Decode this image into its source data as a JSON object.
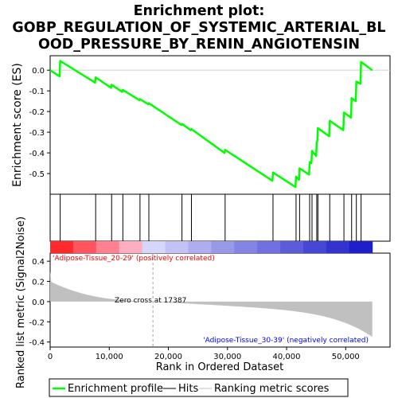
{
  "chart_data": {
    "type": "line",
    "title_lines": [
      "Enrichment plot:",
      "GOBP_REGULATION_OF_SYSTEMIC_ARTERIAL_BL",
      "OOD_PRESSURE_BY_RENIN_ANGIOTENSIN"
    ],
    "es_panel": {
      "ylabel": "Enrichment score (ES)",
      "ylim": [
        -0.6,
        0.07
      ],
      "yticks": [
        0.0,
        -0.1,
        -0.2,
        -0.3,
        -0.4,
        -0.5
      ],
      "ytick_labels": [
        "0.0",
        "-0.1",
        "-0.2",
        "-0.3",
        "-0.4",
        "-0.5"
      ],
      "color": "#00ff00"
    },
    "hits": [
      1700,
      7700,
      10400,
      12300,
      15200,
      16700,
      22300,
      23900,
      29600,
      37700,
      41600,
      42200,
      43900,
      44300,
      45100,
      45300,
      47300,
      49700,
      51000,
      51800,
      52600
    ],
    "es_curve": {
      "x": [
        0,
        1600,
        1700,
        7600,
        7700,
        10300,
        10400,
        12200,
        12300,
        15100,
        15200,
        16600,
        16700,
        22200,
        22300,
        23800,
        23900,
        29500,
        29600,
        37600,
        37700,
        41500,
        41600,
        42100,
        42200,
        43800,
        43900,
        44200,
        44300,
        45000,
        45100,
        45200,
        45300,
        47200,
        47300,
        49600,
        49700,
        50900,
        51000,
        51700,
        51800,
        52500,
        52600,
        54500
      ],
      "y": [
        0.0,
        -0.03,
        0.045,
        -0.06,
        -0.035,
        -0.085,
        -0.07,
        -0.105,
        -0.095,
        -0.145,
        -0.14,
        -0.165,
        -0.16,
        -0.265,
        -0.26,
        -0.29,
        -0.285,
        -0.4,
        -0.385,
        -0.535,
        -0.495,
        -0.565,
        -0.515,
        -0.53,
        -0.475,
        -0.505,
        -0.445,
        -0.45,
        -0.39,
        -0.415,
        -0.35,
        -0.34,
        -0.28,
        -0.32,
        -0.245,
        -0.29,
        -0.205,
        -0.23,
        -0.135,
        -0.15,
        -0.055,
        -0.065,
        0.04,
        0.0
      ]
    },
    "ranking": {
      "ylabel": "Ranked list metric (Signal2Noise)",
      "ylim": [
        -0.45,
        0.48
      ],
      "yticks": [
        0.4,
        0.2,
        0.0,
        -0.2,
        -0.4
      ],
      "ytick_labels": [
        "0.4",
        "0.2",
        "0.0",
        "-0.2",
        "-0.4"
      ],
      "n": 54500,
      "start_value": 0.3,
      "end_value": -0.35,
      "zero_cross": 17387,
      "zero_cross_label": "Zero cross at 17387",
      "pos_label": "'Adipose-Tissue_20-29' (positively correlated)",
      "neg_label": "'Adipose-Tissue_30-39' (negatively correlated)",
      "pos_color": "#ff0000",
      "neg_color": "#0000ff"
    },
    "xlabel": "Rank in Ordered Dataset",
    "xlim": [
      0,
      57500
    ],
    "xticks": [
      0,
      10000,
      20000,
      30000,
      40000,
      50000
    ],
    "xtick_labels": [
      "0",
      "10,000",
      "20,000",
      "30,000",
      "40,000",
      "50,000"
    ],
    "legend": {
      "placement": "bottom",
      "items": [
        {
          "label": "Enrichment profile",
          "color": "#00ff00"
        },
        {
          "label": "Hits",
          "color": "#000000"
        },
        {
          "label": "Ranking metric scores",
          "color": "#c0c0c0"
        }
      ]
    }
  }
}
